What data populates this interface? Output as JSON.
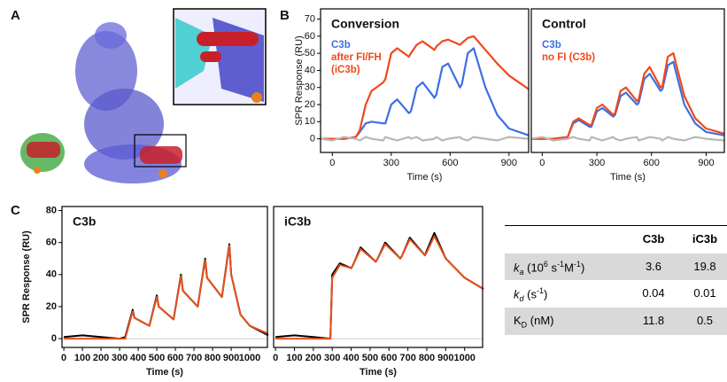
{
  "panels": [
    "A",
    "B",
    "C"
  ],
  "chart_data": [
    {
      "type": "line",
      "title": "Conversion",
      "ylabel": "SPR Response (RU)",
      "xlabel": "Time (s)",
      "legend": "upper left",
      "x": [
        -60,
        0,
        60,
        120,
        140,
        170,
        200,
        260,
        270,
        300,
        330,
        390,
        400,
        430,
        460,
        520,
        530,
        560,
        590,
        650,
        660,
        690,
        720,
        780,
        840,
        900,
        1000
      ],
      "series": [
        {
          "name": "C3b",
          "color": "#3b6fe3",
          "values": [
            0,
            0,
            0,
            1,
            4,
            9,
            10,
            9,
            9,
            20,
            23,
            15,
            16,
            30,
            33,
            24,
            26,
            42,
            44,
            30,
            32,
            50,
            53,
            30,
            14,
            6,
            2
          ]
        },
        {
          "name": "after FI/FH (iC3b)",
          "color": "#f0481c",
          "values": [
            0,
            0,
            0,
            1,
            5,
            20,
            28,
            33,
            35,
            50,
            53,
            48,
            50,
            55,
            57,
            52,
            54,
            57,
            58,
            55,
            56,
            59,
            60,
            52,
            44,
            37,
            29
          ]
        },
        {
          "color": "#b8b8b8",
          "values": [
            0,
            -1,
            1,
            0,
            -1,
            1,
            0,
            -1,
            1,
            0,
            -1,
            1,
            0,
            1,
            -1,
            0,
            1,
            -1,
            0,
            1,
            0,
            -1,
            1,
            0,
            -1,
            1,
            0
          ]
        }
      ],
      "xlim": [
        -60,
        1000
      ],
      "xticks": [
        0,
        300,
        600,
        900
      ],
      "ylim": [
        -8,
        76
      ],
      "yticks": [
        0,
        10,
        20,
        30,
        40,
        50,
        60,
        70
      ]
    },
    {
      "type": "line",
      "title": "Control",
      "xlabel": "Time (s)",
      "legend": "upper left",
      "x": [
        -60,
        0,
        60,
        140,
        170,
        200,
        260,
        270,
        300,
        330,
        390,
        400,
        430,
        460,
        520,
        530,
        560,
        590,
        650,
        660,
        690,
        720,
        780,
        840,
        900,
        1000
      ],
      "series": [
        {
          "name": "C3b",
          "color": "#3b6fe3",
          "values": [
            0,
            0,
            0,
            1,
            9,
            11,
            7,
            7,
            16,
            18,
            13,
            14,
            25,
            27,
            20,
            21,
            35,
            38,
            28,
            29,
            43,
            45,
            20,
            9,
            4,
            2
          ]
        },
        {
          "name": "no FI (C3b)",
          "color": "#f0481c",
          "values": [
            0,
            0,
            0,
            1,
            10,
            12,
            8,
            8,
            18,
            20,
            14,
            15,
            28,
            30,
            22,
            23,
            38,
            42,
            30,
            31,
            48,
            50,
            25,
            12,
            6,
            3
          ]
        },
        {
          "color": "#b8b8b8",
          "values": [
            0,
            1,
            -1,
            0,
            1,
            0,
            -1,
            1,
            0,
            -1,
            1,
            0,
            -1,
            0,
            1,
            -1,
            0,
            1,
            0,
            -1,
            1,
            0,
            -1,
            1,
            0,
            -1
          ]
        }
      ],
      "xlim": [
        -60,
        1000
      ],
      "xticks": [
        0,
        300,
        600,
        900
      ],
      "ylim": [
        -8,
        76
      ]
    },
    {
      "type": "line",
      "title": "C3b",
      "ylabel": "SPR Response (RU)",
      "xlabel": "Time (s)",
      "x": [
        0,
        100,
        200,
        300,
        330,
        370,
        380,
        460,
        500,
        510,
        590,
        630,
        640,
        720,
        760,
        770,
        850,
        890,
        900,
        950,
        1000,
        1100
      ],
      "series": [
        {
          "color": "#000000",
          "values": [
            1,
            2,
            1,
            0,
            1,
            18,
            13,
            8,
            27,
            20,
            12,
            40,
            30,
            20,
            50,
            38,
            26,
            59,
            40,
            15,
            8,
            2
          ]
        },
        {
          "color": "#e8501c",
          "values": [
            0,
            0,
            0,
            0,
            0,
            17,
            13,
            8,
            26,
            20,
            12,
            39,
            30,
            20,
            49,
            38,
            26,
            58,
            40,
            15,
            8,
            3
          ]
        }
      ],
      "xlim": [
        -10,
        1095
      ],
      "xticks": [
        0,
        100,
        200,
        300,
        400,
        500,
        600,
        700,
        800,
        900,
        1000
      ],
      "ylim": [
        -5.5,
        82.5
      ],
      "yticks": [
        0,
        20,
        40,
        60,
        80
      ]
    },
    {
      "type": "line",
      "title": "iC3b",
      "xlabel": "Time (s)",
      "x": [
        0,
        100,
        200,
        290,
        300,
        340,
        400,
        410,
        450,
        530,
        540,
        580,
        660,
        670,
        710,
        790,
        800,
        840,
        900,
        1000,
        1100
      ],
      "series": [
        {
          "color": "#000000",
          "values": [
            1,
            2,
            1,
            0,
            40,
            47,
            44,
            46,
            57,
            48,
            50,
            60,
            50,
            52,
            63,
            52,
            55,
            66,
            50,
            38,
            31
          ]
        },
        {
          "color": "#e8501c",
          "values": [
            0,
            0,
            0,
            0,
            38,
            46,
            44,
            46,
            56,
            48,
            50,
            59,
            50,
            52,
            62,
            52,
            54,
            64,
            50,
            38,
            31
          ]
        }
      ],
      "xlim": [
        -10,
        1095
      ],
      "xticks": [
        0,
        100,
        200,
        300,
        400,
        500,
        600,
        700,
        800,
        900,
        1000
      ],
      "ylim": [
        -5.5,
        82.5
      ]
    }
  ],
  "table": {
    "columns": [
      "C3b",
      "iC3b"
    ],
    "rows": [
      {
        "label": [
          "k",
          "a",
          " (10",
          "6",
          " s",
          "-1",
          "M",
          "-1",
          ")"
        ],
        "values": [
          3.6,
          19.8
        ]
      },
      {
        "label": [
          "k",
          "d",
          " (s",
          "-1",
          ")"
        ],
        "values": [
          0.04,
          0.01
        ]
      },
      {
        "label": [
          "K",
          "D",
          " (nM)"
        ],
        "values": [
          11.8,
          0.5
        ]
      }
    ]
  }
}
